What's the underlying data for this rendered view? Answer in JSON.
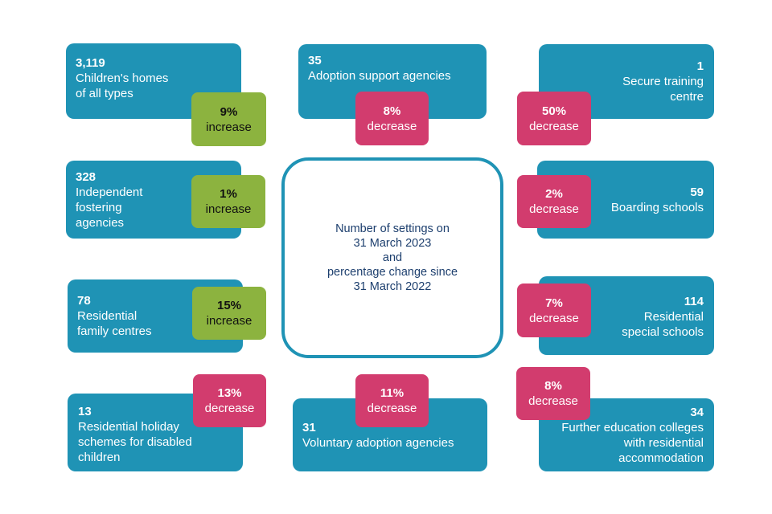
{
  "center_text": "Number of settings on\n31 March 2023\nand\npercentage change since\n31 March 2022",
  "colors": {
    "card": "#1f93b5",
    "increase": "#8cb33f",
    "decrease": "#d23c6e",
    "center_text": "#1d3f6e"
  },
  "settings": [
    {
      "count": "3,119",
      "label": "Children's homes\nof all types",
      "change": "9%",
      "direction": "increase"
    },
    {
      "count": "35",
      "label": "Adoption support agencies",
      "change": "8%",
      "direction": "decrease"
    },
    {
      "count": "1",
      "label": "Secure training\ncentre",
      "change": "50%",
      "direction": "decrease"
    },
    {
      "count": "328",
      "label": "Independent\nfostering\nagencies",
      "change": "1%",
      "direction": "increase"
    },
    {
      "count": "59",
      "label": "Boarding schools",
      "change": "2%",
      "direction": "decrease"
    },
    {
      "count": "78",
      "label": "Residential\nfamily centres",
      "change": "15%",
      "direction": "increase"
    },
    {
      "count": "114",
      "label": "Residential\nspecial schools",
      "change": "7%",
      "direction": "decrease"
    },
    {
      "count": "13",
      "label": "Residential holiday\nschemes for disabled\nchildren",
      "change": "13%",
      "direction": "decrease"
    },
    {
      "count": "31",
      "label": "Voluntary adoption agencies",
      "change": "11%",
      "direction": "decrease"
    },
    {
      "count": "34",
      "label": "Further education colleges\nwith residential\naccommodation",
      "change": "8%",
      "direction": "decrease"
    }
  ]
}
